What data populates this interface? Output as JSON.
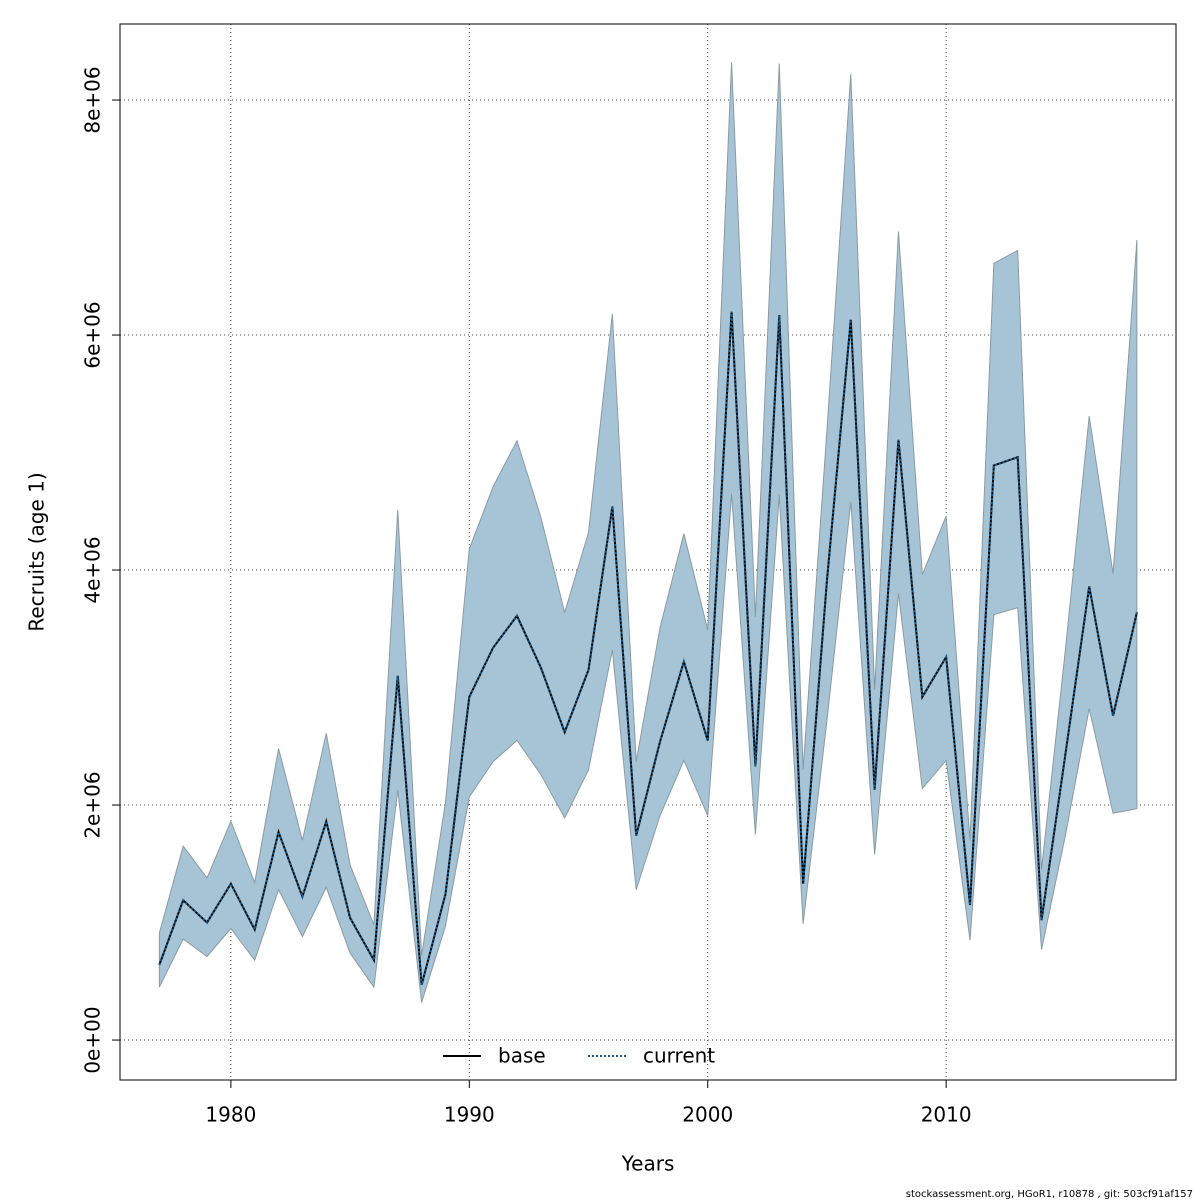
{
  "chart_data": {
    "type": "line",
    "x_label": "Years",
    "y_label": "Recruits (age 1)",
    "x": [
      1977,
      1978,
      1979,
      1980,
      1981,
      1982,
      1983,
      1984,
      1985,
      1986,
      1987,
      1988,
      1989,
      1990,
      1991,
      1992,
      1993,
      1994,
      1995,
      1996,
      1997,
      1998,
      1999,
      2000,
      2001,
      2002,
      2003,
      2004,
      2005,
      2006,
      2007,
      2008,
      2009,
      2010,
      2011,
      2012,
      2013,
      2014,
      2015,
      2016,
      2017,
      2018
    ],
    "series": [
      {
        "name": "base",
        "color": "#000000",
        "dash": "solid",
        "values": [
          640000,
          1190000,
          1000000,
          1330000,
          940000,
          1770000,
          1220000,
          1860000,
          1040000,
          680000,
          3100000,
          470000,
          1240000,
          2920000,
          3340000,
          3610000,
          3170000,
          2620000,
          3150000,
          4540000,
          1740000,
          2540000,
          3220000,
          2550000,
          6200000,
          2330000,
          6170000,
          1330000,
          3910000,
          6130000,
          2130000,
          5110000,
          2920000,
          3260000,
          1150000,
          4890000,
          4960000,
          1020000,
          2430000,
          3860000,
          2760000,
          3640000
        ]
      },
      {
        "name": "current",
        "color": "#1a5a8a",
        "dash": "dotted",
        "values": [
          640000,
          1190000,
          1000000,
          1330000,
          940000,
          1770000,
          1220000,
          1860000,
          1040000,
          680000,
          3100000,
          470000,
          1240000,
          2920000,
          3340000,
          3610000,
          3170000,
          2620000,
          3150000,
          4540000,
          1740000,
          2540000,
          3220000,
          2550000,
          6200000,
          2330000,
          6170000,
          1330000,
          3910000,
          6130000,
          2130000,
          5110000,
          2920000,
          3260000,
          1150000,
          4890000,
          4960000,
          1020000,
          2430000,
          3860000,
          2760000,
          3640000
        ]
      }
    ],
    "band": {
      "color": "#a6c4d5",
      "stroke": "#8a9aa4",
      "lower": [
        450000,
        860000,
        710000,
        950000,
        680000,
        1280000,
        880000,
        1300000,
        740000,
        450000,
        2130000,
        320000,
        970000,
        2070000,
        2370000,
        2550000,
        2260000,
        1890000,
        2300000,
        3320000,
        1280000,
        1910000,
        2380000,
        1910000,
        4650000,
        1750000,
        4640000,
        990000,
        2720000,
        4580000,
        1580000,
        3800000,
        2140000,
        2380000,
        850000,
        3620000,
        3680000,
        770000,
        1740000,
        2820000,
        1930000,
        1970000
      ],
      "upper": [
        910000,
        1650000,
        1380000,
        1860000,
        1340000,
        2480000,
        1700000,
        2610000,
        1490000,
        980000,
        4510000,
        720000,
        2020000,
        4180000,
        4710000,
        5100000,
        4450000,
        3640000,
        4320000,
        6180000,
        2370000,
        3510000,
        4310000,
        3490000,
        8320000,
        3600000,
        8310000,
        2300000,
        5190000,
        8220000,
        2980000,
        6880000,
        3960000,
        4460000,
        1700000,
        6610000,
        6720000,
        1450000,
        3320000,
        5310000,
        3970000,
        6810000
      ]
    },
    "xlim": [
      1975.35,
      2019.64
    ],
    "xticks": [
      1980,
      1990,
      2000,
      2010
    ],
    "ylim": [
      -340000,
      8647000
    ],
    "yticks": [
      {
        "value": 0,
        "label": "0e+00"
      },
      {
        "value": 2000000,
        "label": "2e+06"
      },
      {
        "value": 4000000,
        "label": "4e+06"
      },
      {
        "value": 6000000,
        "label": "6e+06"
      },
      {
        "value": 8000000,
        "label": "8e+06"
      }
    ],
    "grid": true,
    "legend": "bottom",
    "footer": "stockassessment.org, HGoR1, r10878 , git: 503cf91af157"
  }
}
